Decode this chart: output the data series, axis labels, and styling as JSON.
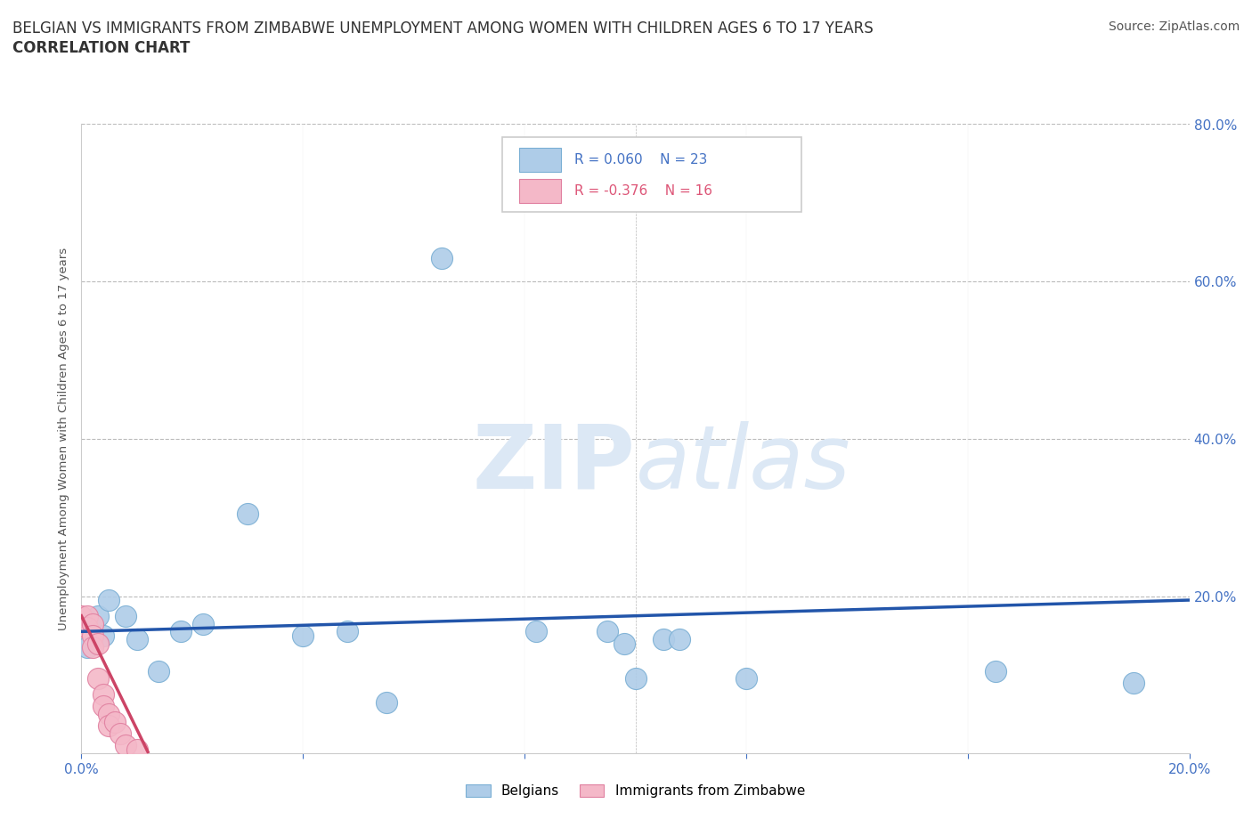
{
  "title_line1": "BELGIAN VS IMMIGRANTS FROM ZIMBABWE UNEMPLOYMENT AMONG WOMEN WITH CHILDREN AGES 6 TO 17 YEARS",
  "title_line2": "CORRELATION CHART",
  "source_text": "Source: ZipAtlas.com",
  "ylabel": "Unemployment Among Women with Children Ages 6 to 17 years",
  "xlim": [
    0.0,
    0.2
  ],
  "ylim": [
    0.0,
    0.8
  ],
  "x_ticks": [
    0.0,
    0.04,
    0.08,
    0.12,
    0.16,
    0.2
  ],
  "y_ticks": [
    0.0,
    0.2,
    0.4,
    0.6,
    0.8
  ],
  "belgian_color": "#aecce8",
  "belgian_edge_color": "#7aafd4",
  "zimbabwe_color": "#f4b8c8",
  "zimbabwe_edge_color": "#e080a0",
  "belgian_line_color": "#2255aa",
  "zimbabwe_line_color": "#cc4466",
  "watermark_color": "#dce8f5",
  "legend_r1": "R = 0.060",
  "legend_n1": "N = 23",
  "legend_r2": "R = -0.376",
  "legend_n2": "N = 16",
  "axis_color": "#4472c4",
  "grid_color": "#bbbbbb",
  "belgians_label": "Belgians",
  "zimbabwe_label": "Immigrants from Zimbabwe",
  "belgian_x": [
    0.001,
    0.003,
    0.004,
    0.005,
    0.008,
    0.01,
    0.014,
    0.018,
    0.022,
    0.03,
    0.04,
    0.048,
    0.055,
    0.065,
    0.082,
    0.095,
    0.098,
    0.1,
    0.105,
    0.108,
    0.12,
    0.165,
    0.19
  ],
  "belgian_y": [
    0.135,
    0.175,
    0.15,
    0.195,
    0.175,
    0.145,
    0.105,
    0.155,
    0.165,
    0.305,
    0.15,
    0.155,
    0.065,
    0.63,
    0.155,
    0.155,
    0.14,
    0.095,
    0.145,
    0.145,
    0.095,
    0.105,
    0.09
  ],
  "zimbabwe_x": [
    0.0,
    0.001,
    0.001,
    0.002,
    0.002,
    0.002,
    0.003,
    0.003,
    0.004,
    0.004,
    0.005,
    0.005,
    0.006,
    0.007,
    0.008,
    0.01
  ],
  "zimbabwe_y": [
    0.175,
    0.175,
    0.16,
    0.165,
    0.15,
    0.135,
    0.14,
    0.095,
    0.075,
    0.06,
    0.05,
    0.035,
    0.04,
    0.025,
    0.01,
    0.005
  ],
  "belgian_trendline_x": [
    0.0,
    0.2
  ],
  "belgian_trendline_y": [
    0.155,
    0.195
  ],
  "zimbabwe_trendline_x": [
    0.0,
    0.012
  ],
  "zimbabwe_trendline_y": [
    0.175,
    0.002
  ]
}
